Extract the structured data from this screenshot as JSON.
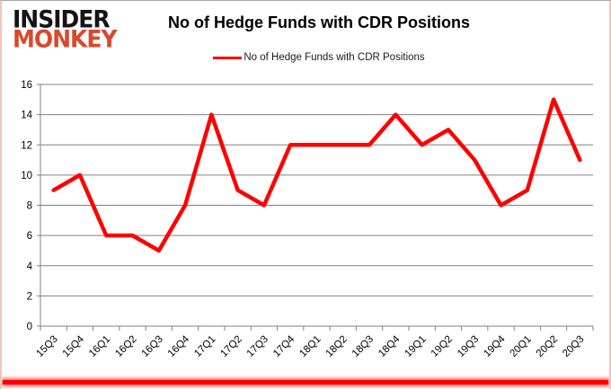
{
  "brand": {
    "line1": "INSIDER",
    "line2": "MONKEY",
    "accent_color": "#d9492c"
  },
  "chart_data": {
    "type": "line",
    "title": "No of Hedge Funds with CDR Positions",
    "legend": "No of Hedge Funds with CDR Positions",
    "legend_position": "top",
    "categories": [
      "15Q3",
      "15Q4",
      "16Q1",
      "16Q2",
      "16Q3",
      "16Q4",
      "17Q1",
      "17Q2",
      "17Q3",
      "17Q4",
      "18Q1",
      "18Q2",
      "18Q3",
      "18Q4",
      "19Q1",
      "19Q2",
      "19Q3",
      "19Q4",
      "20Q1",
      "20Q2",
      "20Q3"
    ],
    "values": [
      9,
      10,
      6,
      6,
      5,
      8,
      14,
      9,
      8,
      12,
      12,
      12,
      12,
      14,
      12,
      13,
      11,
      8,
      9,
      15,
      11
    ],
    "yticks": [
      0,
      2,
      4,
      6,
      8,
      10,
      12,
      14,
      16
    ],
    "ylim": [
      0,
      16
    ],
    "grid": true,
    "line_color": "#ff0000",
    "grid_color": "#808080",
    "tick_label_color": "#000000"
  }
}
